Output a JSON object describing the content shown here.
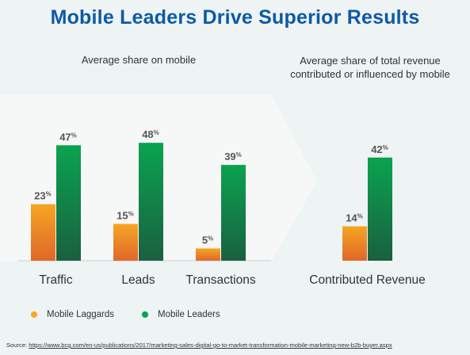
{
  "title": "Mobile Leaders Drive Superior Results",
  "subtitle_left": "Average share on mobile",
  "subtitle_right": "Average share of total revenue contributed or influenced by mobile",
  "colors": {
    "laggards_top": "#f5a623",
    "laggards_bottom": "#e0672a",
    "leaders_top": "#0aa34f",
    "leaders_bottom": "#1a6040",
    "title": "#0d5aa7",
    "label": "#555555"
  },
  "chart_data": {
    "type": "bar",
    "categories": [
      "Traffic",
      "Leads",
      "Transactions",
      "Contributed Revenue"
    ],
    "series": [
      {
        "name": "Mobile Laggards",
        "values": [
          23,
          15,
          5,
          14
        ]
      },
      {
        "name": "Mobile Leaders",
        "values": [
          47,
          48,
          39,
          42
        ]
      }
    ],
    "value_suffix": "%",
    "ylim": [
      0,
      50
    ],
    "grid": false,
    "legend": "bottom-left"
  },
  "source_label": "Source:",
  "source_url": "https://www.bcg.com/en-us/publications/2017/marketing-sales-digital-go-to-market-transformation-mobile-marketing-new-b2b-buyer.aspx"
}
